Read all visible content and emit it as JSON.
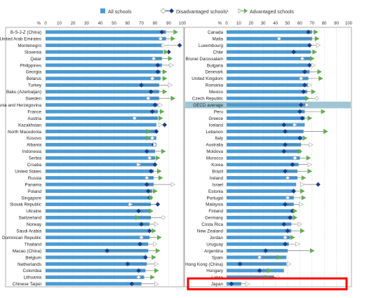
{
  "legend": {
    "all": "All schools",
    "disadv": "Disadvantaged schools¹",
    "adv": "Advantaged schools"
  },
  "axis": {
    "unit": "%",
    "ticks": [
      "0",
      "10",
      "20",
      "30",
      "40",
      "50",
      "60",
      "70",
      "80",
      "90",
      "100"
    ]
  },
  "colors": {
    "all": "#4a9bd4",
    "disadv": "#1e3f87",
    "adv": "#5fae4e",
    "open_marker": "#b0b0b0",
    "oecd_band": "#9fc6d2",
    "highlight": "#ff0000"
  },
  "chart_data": [
    {
      "type": "bar",
      "panel": "left",
      "xlim": [
        0,
        100
      ],
      "categories": [
        "B-S-J-Z (China)",
        "United Arab Emirates",
        "Montenegro",
        "Slovenia",
        "Qatar",
        "Philippines",
        "Georgia",
        "Belarus",
        "Turkey",
        "Baku (Azerbaijan)",
        "Sweden",
        "Bosnia and Herzegovina",
        "France",
        "Austria",
        "Kazakhstan",
        "North Macedonia",
        "Kosovo",
        "Albania",
        "Indonesia",
        "Serbia",
        "Croatia",
        "United States",
        "Russia",
        "Panama",
        "Poland",
        "Singapore",
        "Slovak Republic",
        "Ukraine",
        "Switzerland",
        "Norway",
        "Saudi Arabia",
        "Dominican Republic",
        "Thailand",
        "Macao (China)",
        "Belgium",
        "Netherlands",
        "Colombia",
        "Lithuania",
        "Chinese Taipei"
      ],
      "series": [
        {
          "name": "All schools",
          "values": [
            88,
            88,
            86,
            86,
            85,
            85,
            84,
            84,
            83,
            83,
            83,
            82,
            82,
            82,
            81,
            81,
            81,
            81,
            80,
            80,
            80,
            79,
            79,
            79,
            78,
            78,
            77,
            77,
            77,
            76,
            76,
            76,
            75,
            75,
            74,
            74,
            73,
            72,
            70
          ]
        },
        {
          "name": "Disadvantaged schools¹",
          "values": [
            85,
            84,
            98,
            90,
            79,
            82,
            82,
            78,
            70,
            77,
            75,
            80,
            78,
            65,
            87,
            81,
            78,
            79,
            74,
            76,
            80,
            77,
            74,
            74,
            75,
            76,
            82,
            68,
            86,
            70,
            76,
            70,
            69,
            45,
            73,
            60,
            68,
            68,
            63
          ]
        },
        {
          "name": "Advantaged schools",
          "values": [
            95,
            93,
            86,
            88,
            91,
            92,
            87,
            87,
            91,
            87,
            93,
            84,
            85,
            84,
            84,
            75,
            75,
            80,
            86,
            82,
            68,
            83,
            84,
            93,
            80,
            77,
            62,
            77,
            67,
            81,
            79,
            83,
            80,
            82,
            79,
            81,
            81,
            78,
            81
          ]
        }
      ]
    },
    {
      "type": "bar",
      "panel": "right",
      "xlim": [
        0,
        100
      ],
      "categories": [
        "Canada",
        "Malta",
        "Luxembourg",
        "Chile",
        "Brunei Darussalam",
        "Bulgaria",
        "Denmark",
        "United Kingdom",
        "Romania",
        "Mexico",
        "Czech Republic",
        "OECD average",
        "Peru",
        "Greece",
        "Iceland",
        "Lebanon",
        "Italy",
        "Australia",
        "Moldova",
        "Morocco",
        "Korea",
        "Brazil",
        "Ireland",
        "Israel",
        "Estonia",
        "Portugal",
        "Malaysia",
        "Finland",
        "Germany",
        "Costa Rica",
        "New Zealand",
        "Jordan",
        "Uruguay",
        "Argentina",
        "Spain",
        "Hong Kong (China)",
        "Hungary",
        "Latvia",
        "Japan"
      ],
      "series": [
        {
          "name": "All schools",
          "values": [
            70,
            70,
            69,
            69,
            69,
            68,
            68,
            67,
            67,
            66,
            66,
            65,
            64,
            64,
            64,
            63,
            62,
            61,
            61,
            60,
            59,
            58,
            58,
            57,
            56,
            55,
            55,
            54,
            54,
            53,
            53,
            52,
            51,
            50,
            49,
            49,
            47,
            39,
            12
          ]
        },
        {
          "name": "Disadvantaged schools¹",
          "values": [
            67,
            43,
            68,
            55,
            62,
            68,
            64,
            61,
            64,
            63,
            74,
            61,
            60,
            62,
            47,
            48,
            60,
            48,
            47,
            56,
            54,
            48,
            50,
            75,
            55,
            50,
            48,
            54,
            52,
            47,
            50,
            48,
            48,
            32,
            27,
            11,
            27,
            42,
            4
          ]
        },
        {
          "name": "Advantaged schools",
          "values": [
            73,
            74,
            75,
            72,
            70,
            71,
            76,
            77,
            68,
            71,
            66,
            66,
            79,
            68,
            56,
            81,
            64,
            69,
            60,
            67,
            68,
            68,
            63,
            62,
            62,
            63,
            61,
            56,
            56,
            60,
            62,
            54,
            58,
            70,
            43,
            51,
            35,
            33,
            17
          ]
        }
      ]
    }
  ]
}
